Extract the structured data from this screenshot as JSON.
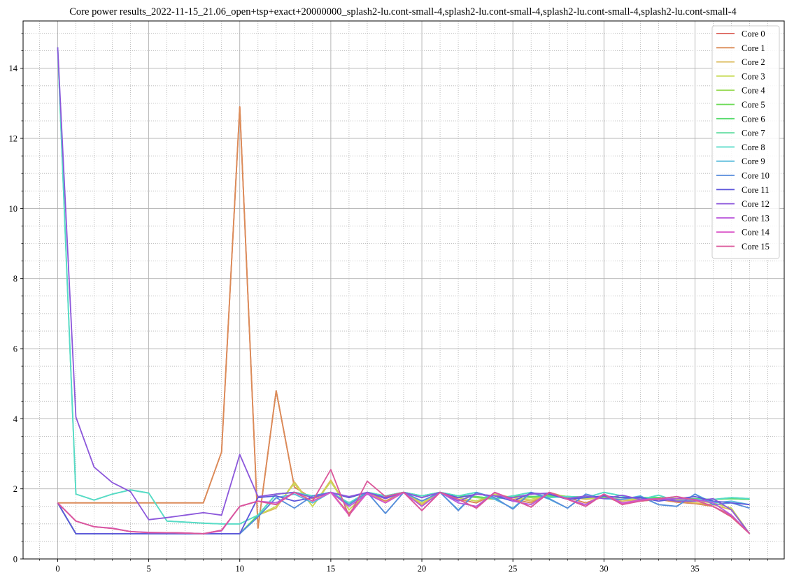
{
  "chart_data": {
    "type": "line",
    "title": "Core power results_2022-11-15_21.06_open+tsp+exact+20000000_splash2-lu.cont-small-4,splash2-lu.cont-small-4,splash2-lu.cont-small-4,splash2-lu.cont-small-4",
    "xlabel": "",
    "ylabel": "",
    "xlim": [
      -1.9,
      39.9
    ],
    "ylim": [
      0,
      15.35
    ],
    "xticks": [
      0,
      5,
      10,
      15,
      20,
      25,
      30,
      35
    ],
    "yticks": [
      0,
      2,
      4,
      6,
      8,
      10,
      12,
      14
    ],
    "grid": true,
    "minor_grid": true,
    "legend_position": "top-right",
    "x": [
      0,
      1,
      2,
      3,
      4,
      5,
      6,
      7,
      8,
      9,
      10,
      11,
      12,
      13,
      14,
      15,
      16,
      17,
      18,
      19,
      20,
      21,
      22,
      23,
      24,
      25,
      26,
      27,
      28,
      29,
      30,
      31,
      32,
      33,
      34,
      35,
      36,
      37,
      38
    ],
    "series": [
      {
        "name": "Core 0",
        "color": "#db5f57",
        "values": [
          1.6,
          1.6,
          1.6,
          1.6,
          1.6,
          1.6,
          1.6,
          1.6,
          1.6,
          3.05,
          12.9,
          0.88,
          4.8,
          2.05,
          1.72,
          1.9,
          1.3,
          1.9,
          1.65,
          1.9,
          1.55,
          1.9,
          1.7,
          1.6,
          1.85,
          1.7,
          1.6,
          1.9,
          1.75,
          1.6,
          1.78,
          1.6,
          1.65,
          1.7,
          1.62,
          1.58,
          1.5,
          1.2,
          0.72
        ]
      },
      {
        "name": "Core 1",
        "color": "#db8c57",
        "values": [
          1.6,
          1.6,
          1.6,
          1.6,
          1.6,
          1.6,
          1.6,
          1.6,
          1.6,
          3.05,
          12.9,
          0.88,
          4.8,
          2.05,
          1.72,
          1.9,
          1.3,
          1.9,
          1.65,
          1.9,
          1.55,
          1.9,
          1.7,
          1.6,
          1.85,
          1.7,
          1.6,
          1.9,
          1.75,
          1.6,
          1.78,
          1.6,
          1.65,
          1.7,
          1.62,
          1.58,
          1.5,
          1.25,
          0.72
        ]
      },
      {
        "name": "Core 2",
        "color": "#dbba57",
        "values": [
          1.6,
          0.72,
          0.72,
          0.72,
          0.72,
          0.72,
          0.72,
          0.72,
          0.72,
          0.72,
          0.72,
          1.25,
          1.45,
          2.2,
          1.5,
          2.25,
          1.4,
          1.9,
          1.6,
          1.9,
          1.55,
          1.9,
          1.75,
          1.65,
          1.85,
          1.75,
          1.65,
          1.85,
          1.78,
          1.7,
          1.75,
          1.65,
          1.7,
          1.72,
          1.68,
          1.6,
          1.55,
          1.4,
          0.72
        ]
      },
      {
        "name": "Core 3",
        "color": "#c8db57",
        "values": [
          1.6,
          0.72,
          0.72,
          0.72,
          0.72,
          0.72,
          0.72,
          0.72,
          0.72,
          0.72,
          0.72,
          1.25,
          1.5,
          2.15,
          1.5,
          2.2,
          1.4,
          1.9,
          1.6,
          1.9,
          1.6,
          1.9,
          1.75,
          1.65,
          1.85,
          1.75,
          1.7,
          1.85,
          1.78,
          1.72,
          1.75,
          1.7,
          1.72,
          1.72,
          1.7,
          1.65,
          1.6,
          1.45,
          0.72
        ]
      },
      {
        "name": "Core 4",
        "color": "#9adb57",
        "values": [
          1.6,
          0.72,
          0.72,
          0.72,
          0.72,
          0.72,
          0.72,
          0.72,
          0.72,
          0.72,
          0.72,
          1.25,
          1.85,
          1.9,
          1.8,
          1.9,
          1.75,
          1.9,
          1.8,
          1.9,
          1.8,
          1.9,
          1.8,
          1.75,
          1.7,
          1.8,
          1.75,
          1.8,
          1.78,
          1.76,
          1.78,
          1.75,
          1.75,
          1.75,
          1.72,
          1.72,
          1.7,
          1.72,
          1.7
        ]
      },
      {
        "name": "Core 5",
        "color": "#6ddb57",
        "values": [
          1.6,
          0.72,
          0.72,
          0.72,
          0.72,
          0.72,
          0.72,
          0.72,
          0.72,
          0.72,
          0.72,
          1.25,
          1.85,
          1.9,
          1.8,
          1.9,
          1.75,
          1.9,
          1.8,
          1.9,
          1.8,
          1.9,
          1.8,
          1.78,
          1.72,
          1.8,
          1.78,
          1.8,
          1.78,
          1.76,
          1.78,
          1.75,
          1.75,
          1.75,
          1.72,
          1.72,
          1.7,
          1.72,
          1.7
        ]
      },
      {
        "name": "Core 6",
        "color": "#57db6d",
        "values": [
          1.6,
          0.72,
          0.72,
          0.72,
          0.72,
          0.72,
          0.72,
          0.72,
          0.72,
          0.72,
          0.72,
          1.25,
          1.85,
          1.9,
          1.8,
          1.9,
          1.75,
          1.9,
          1.8,
          1.9,
          1.8,
          1.9,
          1.8,
          1.78,
          1.72,
          1.8,
          1.78,
          1.8,
          1.78,
          1.76,
          1.78,
          1.75,
          1.75,
          1.75,
          1.72,
          1.72,
          1.7,
          1.72,
          1.7
        ]
      },
      {
        "name": "Core 7",
        "color": "#57db9a",
        "values": [
          14.6,
          1.85,
          1.68,
          1.85,
          1.97,
          1.88,
          1.08,
          1.05,
          1.02,
          1.0,
          1.0,
          1.25,
          1.85,
          1.9,
          1.8,
          1.9,
          1.6,
          1.9,
          1.8,
          1.9,
          1.8,
          1.9,
          1.8,
          1.9,
          1.7,
          1.8,
          1.9,
          1.75,
          1.78,
          1.75,
          1.9,
          1.8,
          1.7,
          1.82,
          1.65,
          1.7,
          1.7,
          1.75,
          1.72
        ]
      },
      {
        "name": "Core 8",
        "color": "#57dbc8",
        "values": [
          14.6,
          1.85,
          1.68,
          1.85,
          1.97,
          1.88,
          1.08,
          1.05,
          1.02,
          1.0,
          1.0,
          1.25,
          1.85,
          1.9,
          1.8,
          1.9,
          1.6,
          1.9,
          1.8,
          1.9,
          1.8,
          1.9,
          1.8,
          1.9,
          1.7,
          1.8,
          1.9,
          1.75,
          1.78,
          1.75,
          1.9,
          1.8,
          1.7,
          1.82,
          1.65,
          1.7,
          1.7,
          1.75,
          1.72
        ]
      },
      {
        "name": "Core 9",
        "color": "#57badb",
        "values": [
          1.6,
          0.72,
          0.72,
          0.72,
          0.72,
          0.72,
          0.72,
          0.72,
          0.72,
          0.72,
          0.72,
          1.2,
          1.75,
          1.85,
          1.6,
          1.9,
          1.55,
          1.9,
          1.3,
          1.9,
          1.65,
          1.9,
          1.4,
          1.9,
          1.7,
          1.45,
          1.9,
          1.7,
          1.45,
          1.85,
          1.72,
          1.7,
          1.8,
          1.55,
          1.5,
          1.85,
          1.6,
          1.65,
          1.55
        ]
      },
      {
        "name": "Core 10",
        "color": "#578cdb",
        "values": [
          1.6,
          0.72,
          0.72,
          0.72,
          0.72,
          0.72,
          0.72,
          0.72,
          0.72,
          0.72,
          0.72,
          1.2,
          1.75,
          1.45,
          1.8,
          1.9,
          1.55,
          1.9,
          1.3,
          1.9,
          1.65,
          1.9,
          1.38,
          1.9,
          1.75,
          1.42,
          1.9,
          1.72,
          1.45,
          1.85,
          1.72,
          1.7,
          1.78,
          1.55,
          1.5,
          1.85,
          1.55,
          1.6,
          1.45
        ]
      },
      {
        "name": "Core 11",
        "color": "#5f57db",
        "values": [
          1.6,
          0.72,
          0.72,
          0.72,
          0.72,
          0.72,
          0.72,
          0.72,
          0.72,
          0.72,
          0.72,
          1.75,
          1.8,
          1.65,
          1.75,
          1.9,
          1.75,
          1.9,
          1.75,
          1.9,
          1.75,
          1.9,
          1.75,
          1.85,
          1.8,
          1.65,
          1.88,
          1.85,
          1.7,
          1.75,
          1.8,
          1.75,
          1.75,
          1.65,
          1.72,
          1.78,
          1.65,
          1.6,
          1.55
        ]
      },
      {
        "name": "Core 12",
        "color": "#8c57db",
        "values": [
          14.6,
          4.05,
          2.62,
          2.18,
          1.92,
          1.12,
          1.18,
          1.25,
          1.32,
          1.25,
          2.98,
          1.78,
          1.85,
          1.9,
          1.75,
          1.9,
          1.78,
          1.9,
          1.72,
          1.9,
          1.75,
          1.9,
          1.65,
          1.85,
          1.8,
          1.75,
          1.85,
          1.88,
          1.72,
          1.8,
          1.72,
          1.82,
          1.7,
          1.72,
          1.65,
          1.65,
          1.72,
          1.4,
          0.72
        ]
      },
      {
        "name": "Core 13",
        "color": "#ba57db",
        "values": [
          1.6,
          1.08,
          0.92,
          0.88,
          0.78,
          0.76,
          0.75,
          0.74,
          0.72,
          0.8,
          1.5,
          1.65,
          1.6,
          1.9,
          1.65,
          1.9,
          1.5,
          1.85,
          1.6,
          1.9,
          1.5,
          1.9,
          1.6,
          1.5,
          1.9,
          1.65,
          1.55,
          1.9,
          1.7,
          1.55,
          1.85,
          1.6,
          1.68,
          1.7,
          1.72,
          1.7,
          1.6,
          1.25,
          0.72
        ]
      },
      {
        "name": "Core 14",
        "color": "#db57c8",
        "values": [
          1.6,
          1.08,
          0.92,
          0.87,
          0.78,
          0.75,
          0.75,
          0.74,
          0.72,
          0.82,
          1.5,
          1.65,
          1.55,
          1.9,
          1.65,
          1.9,
          1.25,
          1.88,
          1.6,
          1.9,
          1.38,
          1.9,
          1.7,
          1.45,
          1.9,
          1.7,
          1.48,
          1.9,
          1.7,
          1.5,
          1.85,
          1.58,
          1.68,
          1.72,
          1.78,
          1.68,
          1.5,
          1.22,
          0.72
        ]
      },
      {
        "name": "Core 15",
        "color": "#db579a",
        "values": [
          1.6,
          1.08,
          0.92,
          0.87,
          0.78,
          0.75,
          0.75,
          0.74,
          0.72,
          0.82,
          1.5,
          1.65,
          1.55,
          1.9,
          1.65,
          2.55,
          1.22,
          2.22,
          1.78,
          1.9,
          1.38,
          1.9,
          1.7,
          1.45,
          1.9,
          1.7,
          1.48,
          1.9,
          1.7,
          1.5,
          1.85,
          1.55,
          1.65,
          1.72,
          1.78,
          1.68,
          1.5,
          1.22,
          0.72
        ]
      }
    ]
  }
}
